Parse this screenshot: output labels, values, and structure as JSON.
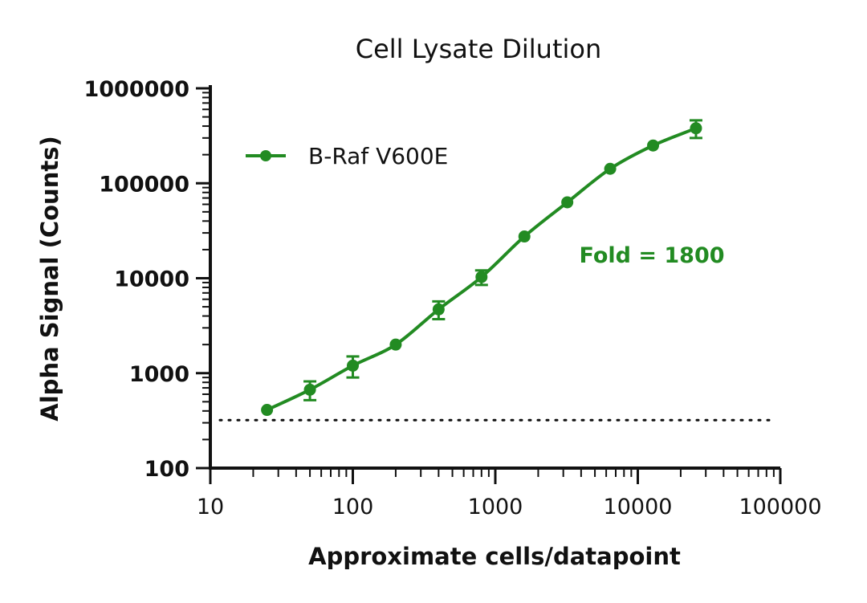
{
  "chart_data": {
    "type": "line",
    "title": "Cell Lysate Dilution",
    "xlabel": "Approximate cells/datapoint",
    "ylabel": "Alpha Signal (Counts)",
    "xscale": "log",
    "yscale": "log",
    "xlim": [
      10,
      100000
    ],
    "ylim": [
      100,
      1000000
    ],
    "x_ticks": [
      "10",
      "100",
      "1000",
      "10000",
      "100000"
    ],
    "y_ticks": [
      "100",
      "1000",
      "10000",
      "100000",
      "1000000"
    ],
    "legend_position": "top-left",
    "grid": false,
    "series": [
      {
        "name": "B-Raf V600E",
        "color": "#228B22",
        "x": [
          25,
          50,
          100,
          200,
          400,
          800,
          1600,
          3200,
          6400,
          12800,
          25600
        ],
        "y": [
          410,
          670,
          1200,
          2000,
          4700,
          10300,
          27500,
          63000,
          142000,
          250000,
          380000
        ],
        "error": [
          0,
          150,
          300,
          0,
          1000,
          1800,
          0,
          0,
          0,
          0,
          80000
        ]
      }
    ],
    "baseline": {
      "y": 320,
      "style": "dotted"
    },
    "annotation": {
      "text": "Fold = 1800",
      "color": "#228B22"
    }
  }
}
